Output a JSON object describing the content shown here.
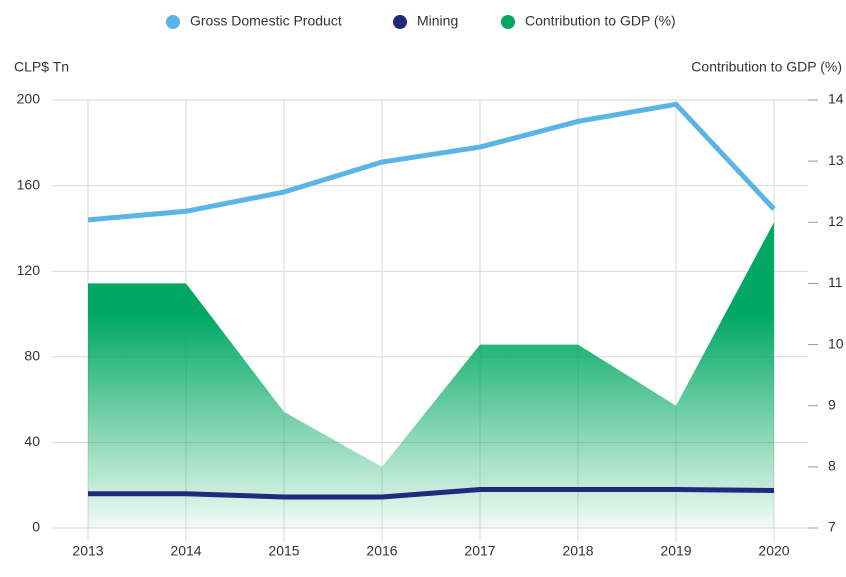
{
  "chart_data": {
    "type": "line",
    "legend": "top",
    "ylabel": "CLP$ Tn",
    "y2label": "Contribution to GDP (%)",
    "categories": [
      "2013",
      "2014",
      "2015",
      "2016",
      "2017",
      "2018",
      "2019",
      "2020"
    ],
    "ylim": [
      0,
      200
    ],
    "yticks": [
      0,
      40,
      80,
      120,
      160,
      200
    ],
    "y2lim": [
      7,
      14
    ],
    "y2ticks": [
      7,
      8,
      9,
      10,
      11,
      12,
      13,
      14
    ],
    "grid": true,
    "series": [
      {
        "name": "Gross Domestic Product",
        "color": "#5ab4e5",
        "type": "line",
        "values": [
          144,
          148,
          157,
          171,
          178,
          190,
          198,
          149
        ]
      },
      {
        "name": "Mining",
        "color": "#1f2a7a",
        "type": "line",
        "values": [
          16,
          16,
          14.5,
          14.5,
          18,
          18,
          18,
          17.5
        ]
      },
      {
        "name": "Contribution to GDP (%)",
        "color": "#00a862",
        "type": "area",
        "axis": "y2",
        "values": [
          11.0,
          11.0,
          8.9,
          8.0,
          10.0,
          10.0,
          9.0,
          12.0
        ]
      }
    ]
  }
}
